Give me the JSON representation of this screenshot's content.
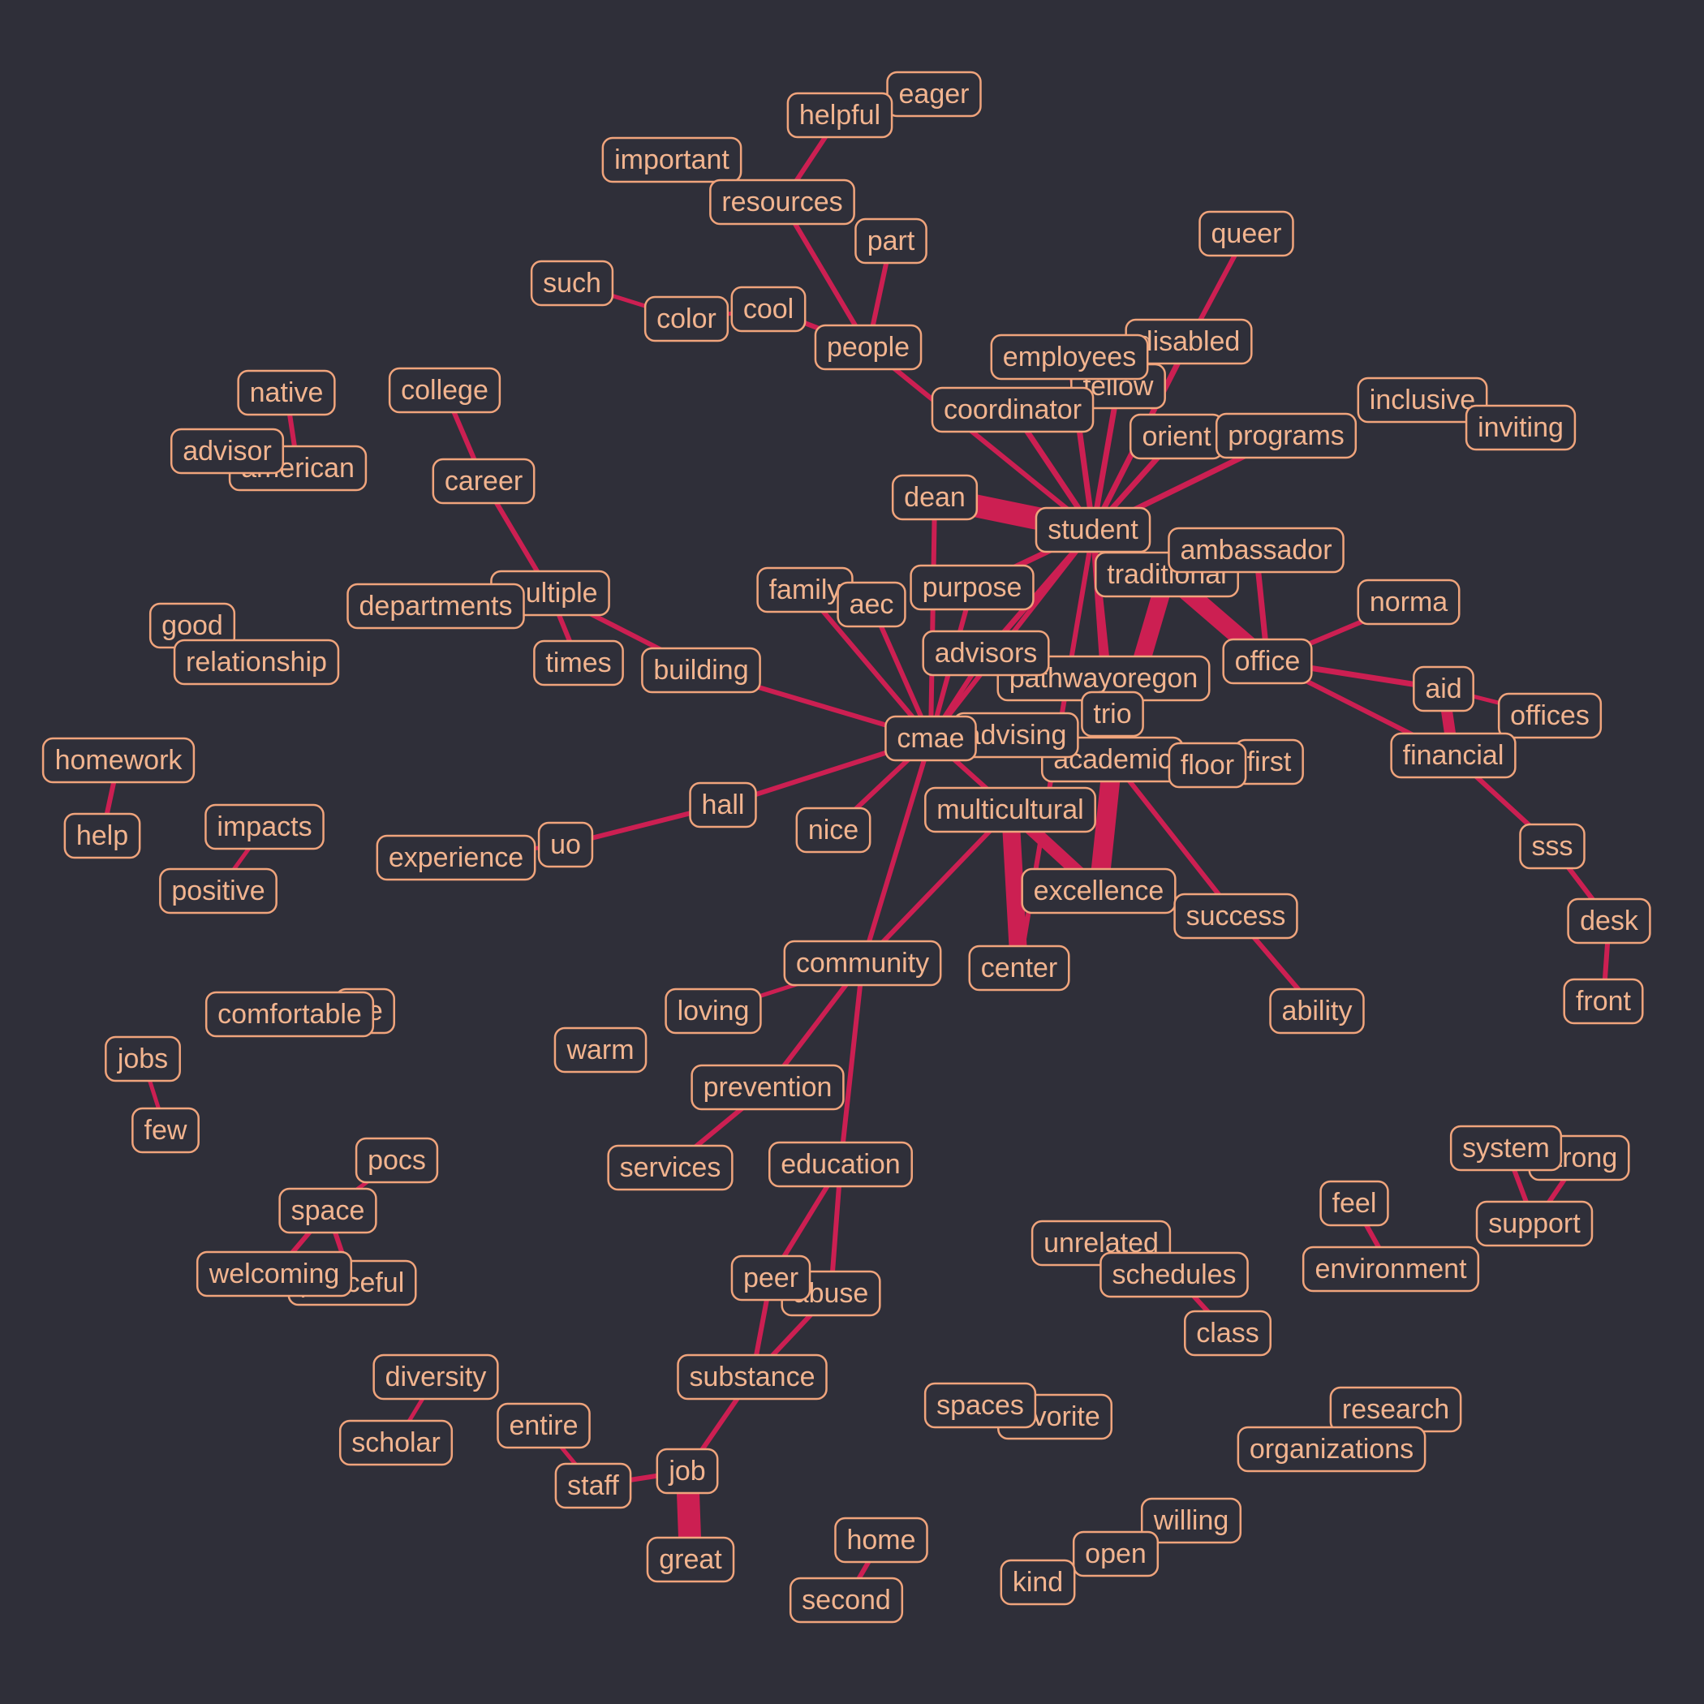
{
  "colors": {
    "background": "#2f2f39",
    "edge": "#cc1f52",
    "node_border": "#f0a47c",
    "node_text": "#f2b48f"
  },
  "words": {
    "eager": "eager",
    "helpful": "helpful",
    "important": "important",
    "resources": "resources",
    "part": "part",
    "such": "such",
    "color": "color",
    "cool": "cool",
    "people": "people",
    "queer": "queer",
    "disabled": "disabled",
    "employees": "employees",
    "fellow": "fellow",
    "coordinator": "coordinator",
    "inclusive": "inclusive",
    "inviting": "inviting",
    "orient": "orient",
    "programs": "programs",
    "native": "native",
    "college": "college",
    "advisor": "advisor",
    "american": "american",
    "career": "career",
    "dean": "dean",
    "student": "student",
    "ambassador": "ambassador",
    "traditional": "traditional",
    "multiple": "multiple",
    "departments": "departments",
    "family": "family",
    "aec": "aec",
    "purpose": "purpose",
    "norma": "norma",
    "good": "good",
    "relationship": "relationship",
    "times": "times",
    "building": "building",
    "advisors": "advisors",
    "office": "office",
    "pathwayoregon": "pathwayoregon",
    "aid": "aid",
    "offices": "offices",
    "trio": "trio",
    "cmae": "cmae",
    "advising": "advising",
    "homework": "homework",
    "academic": "academic",
    "floor": "floor",
    "first": "first",
    "financial": "financial",
    "help": "help",
    "impacts": "impacts",
    "hall": "hall",
    "nice": "nice",
    "multicultural": "multicultural",
    "uo": "uo",
    "experience": "experience",
    "positive": "positive",
    "sss": "sss",
    "excellence": "excellence",
    "success": "success",
    "desk": "desk",
    "center": "center",
    "community": "community",
    "front": "front",
    "life": "life",
    "comfortable": "comfortable",
    "loving": "loving",
    "ability": "ability",
    "warm": "warm",
    "jobs": "jobs",
    "prevention": "prevention",
    "few": "few",
    "pocs": "pocs",
    "services": "services",
    "education": "education",
    "system": "system",
    "strong": "strong",
    "space": "space",
    "feel": "feel",
    "support": "support",
    "unrelated": "unrelated",
    "peaceful": "peaceful",
    "welcoming": "welcoming",
    "schedules": "schedules",
    "environment": "environment",
    "peer": "peer",
    "abuse": "abuse",
    "class": "class",
    "diversity": "diversity",
    "substance": "substance",
    "spaces": "spaces",
    "favorite": "favorite",
    "research": "research",
    "entire": "entire",
    "scholar": "scholar",
    "organizations": "organizations",
    "staff": "staff",
    "job": "job",
    "willing": "willing",
    "home": "home",
    "open": "open",
    "great": "great",
    "kind": "kind",
    "second": "second"
  }
}
